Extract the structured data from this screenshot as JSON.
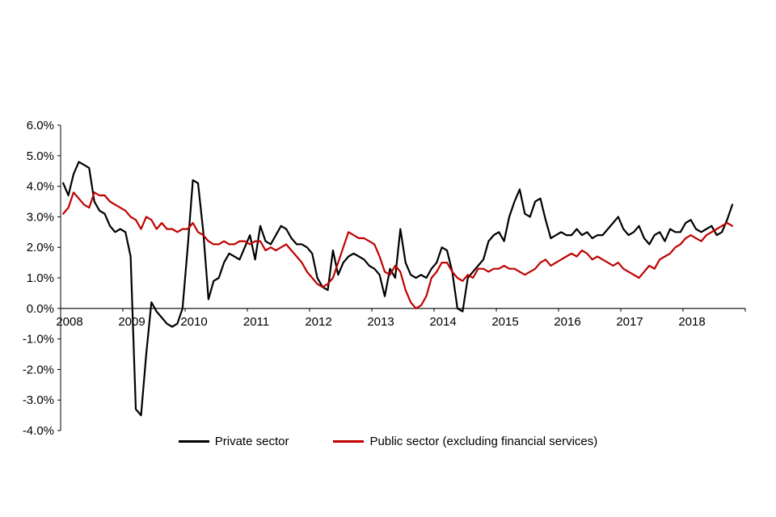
{
  "chart_data": {
    "type": "line",
    "title": "",
    "xlabel": "",
    "ylabel": "",
    "frequency": "monthly",
    "x_range": [
      "2008-01",
      "2018-10"
    ],
    "ylim": [
      -4.0,
      6.0
    ],
    "y_step": 1.0,
    "grid": false,
    "legend_position": "bottom",
    "y_tick_labels": [
      "6.0%",
      "5.0%",
      "4.0%",
      "3.0%",
      "2.0%",
      "1.0%",
      "0.0%",
      "-1.0%",
      "-2.0%",
      "-3.0%",
      "-4.0%"
    ],
    "x_tick_labels": [
      "2008",
      "2009",
      "2010",
      "2011",
      "2012",
      "2013",
      "2014",
      "2015",
      "2016",
      "2017",
      "2018"
    ],
    "series": [
      {
        "name": "Private sector",
        "color": "#000000",
        "values": [
          4.1,
          3.7,
          4.4,
          4.8,
          4.7,
          4.6,
          3.5,
          3.2,
          3.1,
          2.7,
          2.5,
          2.6,
          2.5,
          1.7,
          -3.3,
          -3.5,
          -1.5,
          0.2,
          -0.1,
          -0.3,
          -0.5,
          -0.6,
          -0.5,
          0.0,
          2.0,
          4.2,
          4.1,
          2.5,
          0.3,
          0.9,
          1.0,
          1.5,
          1.8,
          1.7,
          1.6,
          2.0,
          2.4,
          1.6,
          2.7,
          2.2,
          2.1,
          2.4,
          2.7,
          2.6,
          2.3,
          2.1,
          2.1,
          2.0,
          1.8,
          1.0,
          0.7,
          0.6,
          1.9,
          1.1,
          1.5,
          1.7,
          1.8,
          1.7,
          1.6,
          1.4,
          1.3,
          1.1,
          0.4,
          1.3,
          1.0,
          2.6,
          1.5,
          1.1,
          1.0,
          1.1,
          1.0,
          1.3,
          1.5,
          2.0,
          1.9,
          1.2,
          0.0,
          -0.1,
          1.0,
          1.2,
          1.4,
          1.6,
          2.2,
          2.4,
          2.5,
          2.2,
          3.0,
          3.5,
          3.9,
          3.1,
          3.0,
          3.5,
          3.6,
          2.9,
          2.3,
          2.4,
          2.5,
          2.4,
          2.4,
          2.6,
          2.4,
          2.5,
          2.3,
          2.4,
          2.4,
          2.6,
          2.8,
          3.0,
          2.6,
          2.4,
          2.5,
          2.7,
          2.3,
          2.1,
          2.4,
          2.5,
          2.2,
          2.6,
          2.5,
          2.5,
          2.8,
          2.9,
          2.6,
          2.5,
          2.6,
          2.7,
          2.4,
          2.5,
          2.9,
          3.4
        ]
      },
      {
        "name": "Public sector (excluding financial services)",
        "color": "#c00000",
        "values": [
          3.1,
          3.3,
          3.8,
          3.6,
          3.4,
          3.3,
          3.8,
          3.7,
          3.7,
          3.5,
          3.4,
          3.3,
          3.2,
          3.0,
          2.9,
          2.6,
          3.0,
          2.9,
          2.6,
          2.8,
          2.6,
          2.6,
          2.5,
          2.6,
          2.6,
          2.8,
          2.5,
          2.4,
          2.2,
          2.1,
          2.1,
          2.2,
          2.1,
          2.1,
          2.2,
          2.2,
          2.1,
          2.2,
          2.2,
          1.9,
          2.0,
          1.9,
          2.0,
          2.1,
          1.9,
          1.7,
          1.5,
          1.2,
          1.0,
          0.8,
          0.7,
          0.8,
          1.0,
          1.5,
          2.0,
          2.5,
          2.4,
          2.3,
          2.3,
          2.2,
          2.1,
          1.7,
          1.2,
          1.1,
          1.4,
          1.2,
          0.6,
          0.2,
          0.0,
          0.1,
          0.4,
          1.0,
          1.2,
          1.5,
          1.5,
          1.2,
          1.0,
          0.9,
          1.1,
          1.0,
          1.3,
          1.3,
          1.2,
          1.3,
          1.3,
          1.4,
          1.3,
          1.3,
          1.2,
          1.1,
          1.2,
          1.3,
          1.5,
          1.6,
          1.4,
          1.5,
          1.6,
          1.7,
          1.8,
          1.7,
          1.9,
          1.8,
          1.6,
          1.7,
          1.6,
          1.5,
          1.4,
          1.5,
          1.3,
          1.2,
          1.1,
          1.0,
          1.2,
          1.4,
          1.3,
          1.6,
          1.7,
          1.8,
          2.0,
          2.1,
          2.3,
          2.4,
          2.3,
          2.2,
          2.4,
          2.5,
          2.6,
          2.7,
          2.8,
          2.7
        ]
      }
    ]
  }
}
